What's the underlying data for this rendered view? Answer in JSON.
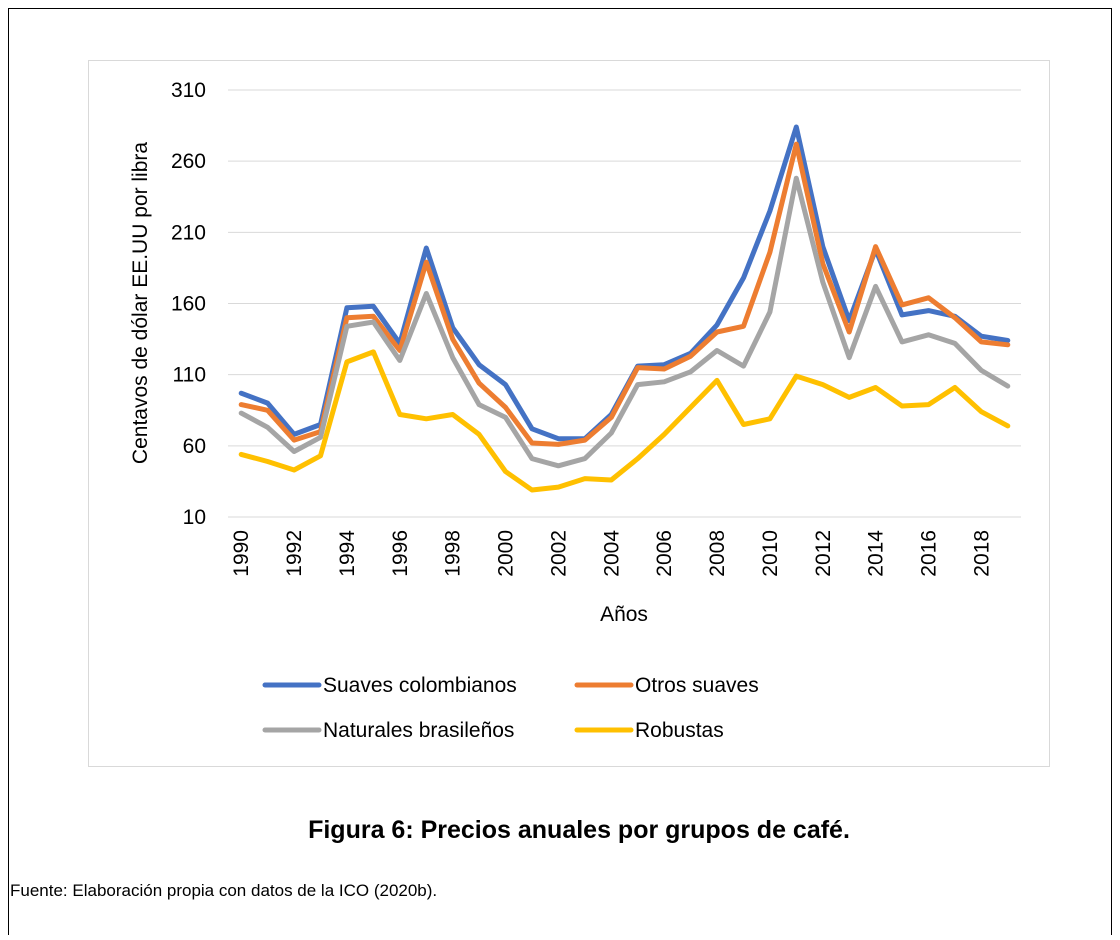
{
  "chart_data": {
    "type": "line",
    "y_label": "Centavos de dólar EE.UU por libra",
    "x_label": "Años",
    "x": [
      1990,
      1991,
      1992,
      1993,
      1994,
      1995,
      1996,
      1997,
      1998,
      1999,
      2000,
      2001,
      2002,
      2003,
      2004,
      2005,
      2006,
      2007,
      2008,
      2009,
      2010,
      2011,
      2012,
      2013,
      2014,
      2015,
      2016,
      2017,
      2018,
      2019
    ],
    "xlim": [
      1989.5,
      2019.5
    ],
    "xticks": [
      1990,
      1992,
      1994,
      1996,
      1998,
      2000,
      2002,
      2004,
      2006,
      2008,
      2010,
      2012,
      2014,
      2016,
      2018
    ],
    "ylim": [
      10,
      310
    ],
    "yticks": [
      10,
      60,
      110,
      160,
      210,
      260,
      310
    ],
    "grid": true,
    "legend": "bottom",
    "series": [
      {
        "name": "Suaves colombianos",
        "color": "#4472c4",
        "values": [
          97,
          90,
          68,
          75,
          157,
          158,
          132,
          199,
          143,
          117,
          103,
          72,
          65,
          65,
          82,
          116,
          117,
          125,
          145,
          178,
          225,
          284,
          200,
          148,
          198,
          152,
          155,
          151,
          137,
          134
        ]
      },
      {
        "name": "Otros suaves",
        "color": "#ed7d31",
        "values": [
          89,
          85,
          64,
          70,
          150,
          151,
          127,
          189,
          135,
          104,
          87,
          62,
          61,
          64,
          80,
          115,
          114,
          123,
          140,
          144,
          196,
          272,
          188,
          140,
          200,
          159,
          164,
          150,
          133,
          131
        ]
      },
      {
        "name": "Naturales brasileños",
        "color": "#a5a5a5",
        "values": [
          83,
          73,
          56,
          66,
          144,
          147,
          120,
          167,
          122,
          89,
          80,
          51,
          46,
          51,
          69,
          103,
          105,
          112,
          127,
          116,
          154,
          248,
          175,
          122,
          172,
          133,
          138,
          132,
          113,
          102
        ]
      },
      {
        "name": "Robustas",
        "color": "#ffc000",
        "values": [
          54,
          49,
          43,
          53,
          119,
          126,
          82,
          79,
          82,
          68,
          42,
          29,
          31,
          37,
          36,
          51,
          68,
          87,
          106,
          75,
          79,
          109,
          103,
          94,
          101,
          88,
          89,
          101,
          84,
          74
        ]
      }
    ]
  },
  "caption": "Figura 6: Precios anuales por grupos de café.",
  "source": "Fuente: Elaboración propia con datos de la ICO (2020b)."
}
